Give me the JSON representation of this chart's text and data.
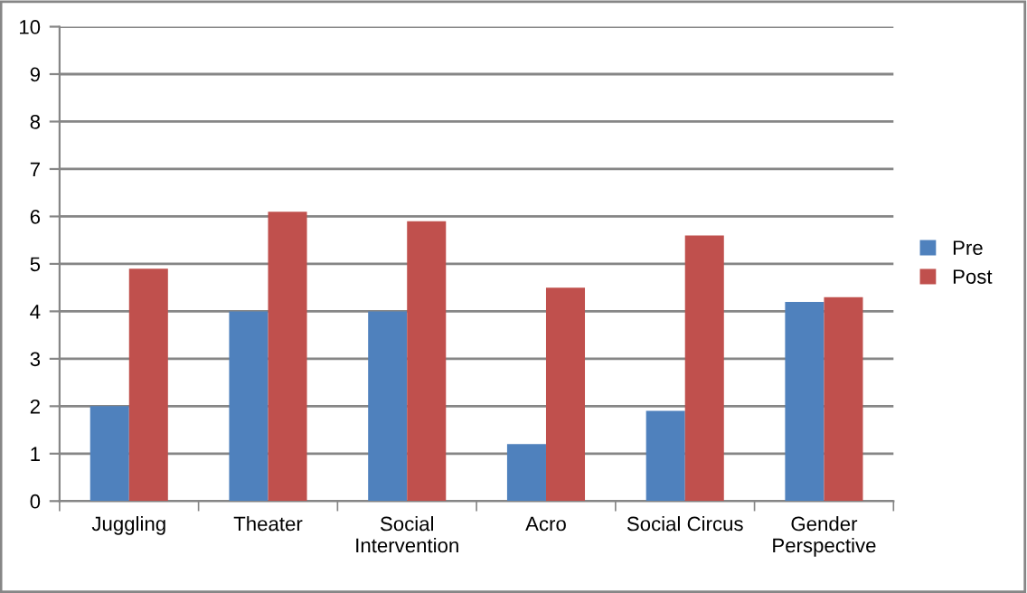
{
  "chart_data": {
    "type": "bar",
    "categories": [
      "Juggling",
      "Theater",
      "Social\nIntervention",
      "Acro",
      "Social Circus",
      "Gender\nPerspective"
    ],
    "series": [
      {
        "name": "Pre",
        "color": "#4f81bd",
        "values": [
          2.0,
          4.0,
          4.0,
          1.2,
          1.9,
          4.2
        ]
      },
      {
        "name": "Post",
        "color": "#c0504d",
        "values": [
          4.9,
          6.1,
          5.9,
          4.5,
          5.6,
          4.3
        ]
      }
    ],
    "ylim": [
      0,
      10
    ],
    "yticks": [
      0,
      1,
      2,
      3,
      4,
      5,
      6,
      7,
      8,
      9,
      10
    ],
    "grid": "y",
    "legend": "right"
  }
}
